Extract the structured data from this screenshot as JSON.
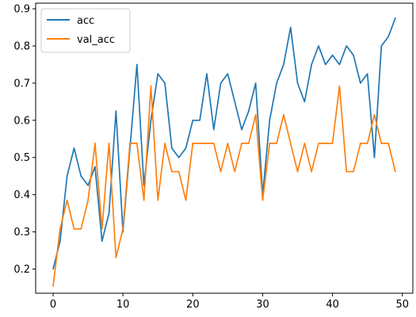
{
  "chart_data": {
    "type": "line",
    "title": "",
    "xlabel": "",
    "ylabel": "",
    "xlim": [
      -2.5,
      51.5
    ],
    "ylim": [
      0.135,
      0.915
    ],
    "xticks": [
      0,
      10,
      20,
      30,
      40,
      50
    ],
    "yticks": [
      0.2,
      0.3,
      0.4,
      0.5,
      0.6,
      0.7,
      0.8,
      0.9
    ],
    "grid": false,
    "legend_position": "top-left",
    "x": [
      0,
      1,
      2,
      3,
      4,
      5,
      6,
      7,
      8,
      9,
      10,
      11,
      12,
      13,
      14,
      15,
      16,
      17,
      18,
      19,
      20,
      21,
      22,
      23,
      24,
      25,
      26,
      27,
      28,
      29,
      30,
      31,
      32,
      33,
      34,
      35,
      36,
      37,
      38,
      39,
      40,
      41,
      42,
      43,
      44,
      45,
      46,
      47,
      48,
      49
    ],
    "series": [
      {
        "name": "acc",
        "color": "#1f77b4",
        "values": [
          0.2,
          0.275,
          0.45,
          0.525,
          0.45,
          0.425,
          0.475,
          0.275,
          0.35,
          0.625,
          0.3,
          0.525,
          0.75,
          0.425,
          0.6,
          0.725,
          0.7,
          0.525,
          0.5,
          0.525,
          0.6,
          0.6,
          0.725,
          0.575,
          0.7,
          0.725,
          0.65,
          0.575,
          0.625,
          0.7,
          0.4,
          0.6,
          0.7,
          0.75,
          0.85,
          0.7,
          0.65,
          0.75,
          0.8,
          0.75,
          0.775,
          0.75,
          0.8,
          0.775,
          0.7,
          0.725,
          0.5,
          0.8,
          0.825,
          0.875
        ]
      },
      {
        "name": "val_acc",
        "color": "#ff7f0e",
        "values": [
          0.154,
          0.308,
          0.385,
          0.308,
          0.308,
          0.385,
          0.538,
          0.308,
          0.538,
          0.231,
          0.308,
          0.538,
          0.538,
          0.385,
          0.692,
          0.385,
          0.538,
          0.462,
          0.462,
          0.385,
          0.538,
          0.538,
          0.538,
          0.538,
          0.462,
          0.538,
          0.462,
          0.538,
          0.538,
          0.615,
          0.385,
          0.538,
          0.538,
          0.615,
          0.538,
          0.462,
          0.538,
          0.462,
          0.538,
          0.538,
          0.538,
          0.692,
          0.462,
          0.462,
          0.538,
          0.538,
          0.615,
          0.538,
          0.538,
          0.462
        ]
      }
    ]
  }
}
